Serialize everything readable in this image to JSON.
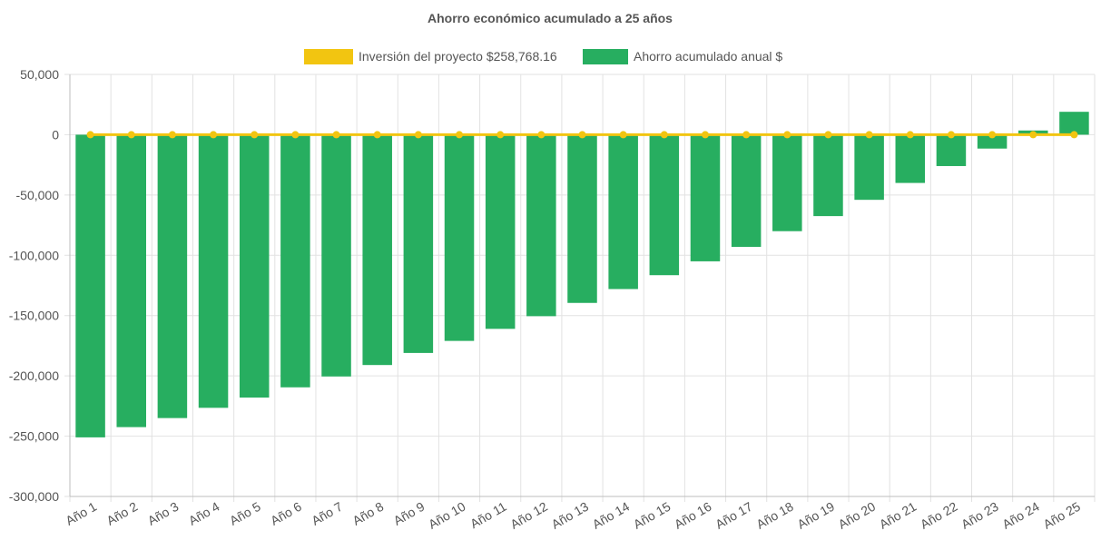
{
  "chart_data": {
    "type": "bar",
    "title": "Ahorro económico acumulado a 25 años",
    "categories": [
      "Año 1",
      "Año 2",
      "Año 3",
      "Año 4",
      "Año 5",
      "Año 6",
      "Año 7",
      "Año 8",
      "Año 9",
      "Año 10",
      "Año 11",
      "Año 12",
      "Año 13",
      "Año 14",
      "Año 15",
      "Año 16",
      "Año 17",
      "Año 18",
      "Año 19",
      "Año 20",
      "Año 21",
      "Año 22",
      "Año 23",
      "Año 24",
      "Año 25"
    ],
    "series": [
      {
        "name": "Inversión del proyecto $258,768.16",
        "type": "line",
        "color": "#f2c511",
        "values": [
          0,
          0,
          0,
          0,
          0,
          0,
          0,
          0,
          0,
          0,
          0,
          0,
          0,
          0,
          0,
          0,
          0,
          0,
          0,
          0,
          0,
          0,
          0,
          0,
          0
        ]
      },
      {
        "name": "Ahorro acumulado anual $",
        "type": "bar",
        "color": "#27ae60",
        "values": [
          -251000,
          -242500,
          -235000,
          -226500,
          -218000,
          -209500,
          -200500,
          -191000,
          -181000,
          -171000,
          -161000,
          -150500,
          -139500,
          -128000,
          -116500,
          -105000,
          -93000,
          -80000,
          -67500,
          -54000,
          -40000,
          -26000,
          -11500,
          3500,
          19000
        ]
      }
    ],
    "ylim": [
      -300000,
      50000
    ],
    "yticks": [
      50000,
      0,
      -50000,
      -100000,
      -150000,
      -200000,
      -250000,
      -300000
    ],
    "ytick_labels": [
      "50,000",
      "0",
      "-50,000",
      "-100,000",
      "-150,000",
      "-200,000",
      "-250,000",
      "-300,000"
    ],
    "grid": true,
    "legend_position": "top-center"
  }
}
